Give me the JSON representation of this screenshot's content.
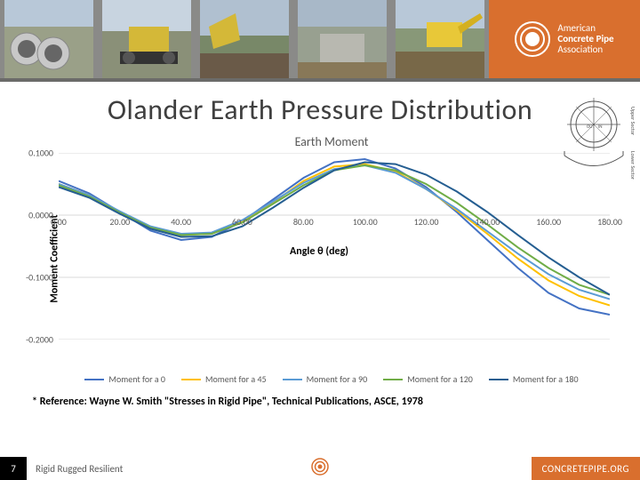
{
  "header": {
    "logo": {
      "line1": "American",
      "line2": "Concrete Pipe",
      "line3": "Association"
    },
    "band_color": "#d96f2e"
  },
  "title": "Olander Earth Pressure Distribution",
  "chart": {
    "type": "line",
    "title": "Earth Moment",
    "ylabel": "Moment Coefficient",
    "xlabel": "Angle θ (deg)",
    "xlim": [
      0,
      180
    ],
    "xtick_step": 20,
    "ylim": [
      -0.2,
      0.1
    ],
    "ytick_step": 0.1,
    "yticks": [
      "0.1000",
      "0.0000",
      "-0.1000",
      "-0.2000"
    ],
    "xticks": [
      "0.00",
      "20.00",
      "40.00",
      "60.00",
      "80.00",
      "100.00",
      "120.00",
      "140.00",
      "160.00",
      "180.00"
    ],
    "background_color": "#ffffff",
    "grid_color": "#d9d9d9",
    "line_width": 2,
    "title_fontsize": 14,
    "label_fontsize": 12,
    "tick_fontsize": 10,
    "series": [
      {
        "name": "Moment for a 0",
        "color": "#4472c4",
        "x": [
          0,
          10,
          20,
          30,
          40,
          50,
          60,
          70,
          80,
          90,
          100,
          110,
          120,
          130,
          140,
          150,
          160,
          170,
          180
        ],
        "y": [
          0.055,
          0.035,
          0.005,
          -0.025,
          -0.04,
          -0.035,
          -0.01,
          0.025,
          0.06,
          0.085,
          0.09,
          0.075,
          0.045,
          0.005,
          -0.04,
          -0.085,
          -0.125,
          -0.15,
          -0.16
        ]
      },
      {
        "name": "Moment for a 45",
        "color": "#ffc000",
        "x": [
          0,
          10,
          20,
          30,
          40,
          50,
          60,
          70,
          80,
          90,
          100,
          110,
          120,
          130,
          140,
          150,
          160,
          170,
          180
        ],
        "y": [
          0.05,
          0.032,
          0.005,
          -0.02,
          -0.032,
          -0.03,
          -0.01,
          0.02,
          0.055,
          0.078,
          0.082,
          0.07,
          0.042,
          0.008,
          -0.03,
          -0.07,
          -0.105,
          -0.13,
          -0.145
        ]
      },
      {
        "name": "Moment for a 90",
        "color": "#5b9bd5",
        "x": [
          0,
          10,
          20,
          30,
          40,
          50,
          60,
          70,
          80,
          90,
          100,
          110,
          120,
          130,
          140,
          150,
          160,
          170,
          180
        ],
        "y": [
          0.05,
          0.032,
          0.006,
          -0.018,
          -0.03,
          -0.028,
          -0.008,
          0.022,
          0.052,
          0.074,
          0.08,
          0.068,
          0.042,
          0.01,
          -0.026,
          -0.062,
          -0.095,
          -0.12,
          -0.135
        ]
      },
      {
        "name": "Moment for a 120",
        "color": "#70ad47",
        "x": [
          0,
          10,
          20,
          30,
          40,
          50,
          60,
          70,
          80,
          90,
          100,
          110,
          120,
          130,
          140,
          150,
          160,
          170,
          180
        ],
        "y": [
          0.048,
          0.03,
          0.004,
          -0.02,
          -0.032,
          -0.03,
          -0.012,
          0.018,
          0.048,
          0.072,
          0.08,
          0.072,
          0.05,
          0.02,
          -0.015,
          -0.052,
          -0.085,
          -0.112,
          -0.128
        ]
      },
      {
        "name": "Moment for a 180",
        "color": "#255e91",
        "x": [
          0,
          10,
          20,
          30,
          40,
          50,
          60,
          70,
          80,
          90,
          100,
          110,
          120,
          130,
          140,
          150,
          160,
          170,
          180
        ],
        "y": [
          0.045,
          0.028,
          0.002,
          -0.022,
          -0.035,
          -0.034,
          -0.018,
          0.012,
          0.044,
          0.072,
          0.085,
          0.082,
          0.065,
          0.038,
          0.005,
          -0.032,
          -0.068,
          -0.1,
          -0.128
        ]
      }
    ]
  },
  "reference": "* Reference: Wayne W. Smith \"Stresses in Rigid Pipe\", Technical Publications, ASCE, 1978",
  "footer": {
    "page": "7",
    "tagline": "Rigid Rugged Resilient",
    "url": "CONCRETEPIPE.ORG"
  }
}
